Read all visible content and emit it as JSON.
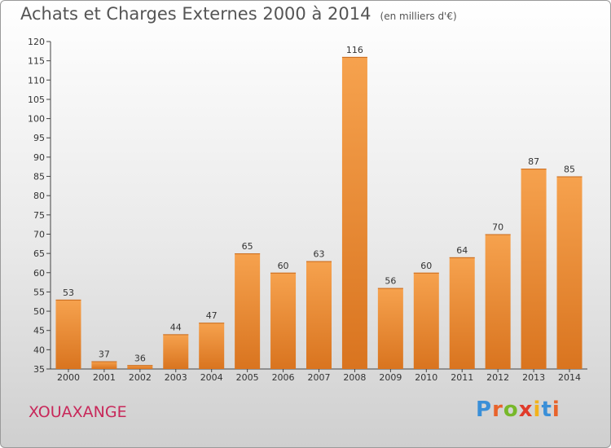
{
  "header": {
    "title": "Achats et Charges Externes 2000 à 2014",
    "subtitle": "(en milliers d'€)"
  },
  "footer": {
    "town": "XOUAXANGE",
    "logo_text": "Proxiti"
  },
  "colors": {
    "bar_top": "#f6a24e",
    "bar_bottom": "#d9741f",
    "town": "#c8285a"
  },
  "chart_data": {
    "type": "bar",
    "title": "Achats et Charges Externes 2000 à 2014",
    "subtitle": "(en milliers d'€)",
    "xlabel": "",
    "ylabel": "",
    "categories": [
      "2000",
      "2001",
      "2002",
      "2003",
      "2004",
      "2005",
      "2006",
      "2007",
      "2008",
      "2009",
      "2010",
      "2011",
      "2012",
      "2013",
      "2014"
    ],
    "values": [
      53,
      37,
      36,
      44,
      47,
      65,
      60,
      63,
      116,
      56,
      60,
      64,
      70,
      87,
      85
    ],
    "ylim": [
      35,
      120
    ],
    "yticks": [
      35,
      40,
      45,
      50,
      55,
      60,
      65,
      70,
      75,
      80,
      85,
      90,
      95,
      100,
      105,
      110,
      115,
      120
    ],
    "grid": false,
    "legend": "none"
  }
}
